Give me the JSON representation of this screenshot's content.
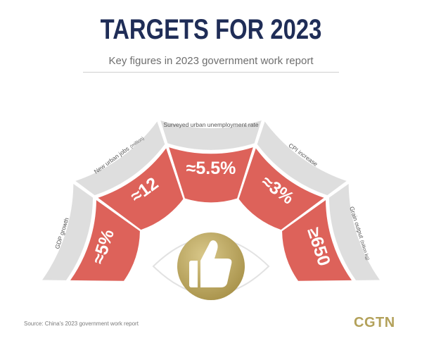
{
  "title": "TARGETS FOR 2023",
  "subtitle": "Key figures in 2023 government work report",
  "targets": [
    {
      "label": "GDP growth",
      "unit": "",
      "value": "≈5%"
    },
    {
      "label": "New urban jobs",
      "unit": "(million)",
      "value": "≈12"
    },
    {
      "label": "Surveyed urban unemployment rate",
      "unit": "",
      "value": "≈5.5%"
    },
    {
      "label": "CPI increase",
      "unit": "",
      "value": "≈3%"
    },
    {
      "label": "Grain output",
      "unit": "(billion kg)",
      "value": "≥650"
    }
  ],
  "source": "Source: China's 2023 government work report",
  "brand": "CGTN",
  "colors": {
    "title": "#1f2d57",
    "segment": "#dd625a",
    "outer_band": "#dedede",
    "gold": "#b3a15a"
  },
  "icons": [
    "eye-icon",
    "thumbs-up-icon"
  ]
}
